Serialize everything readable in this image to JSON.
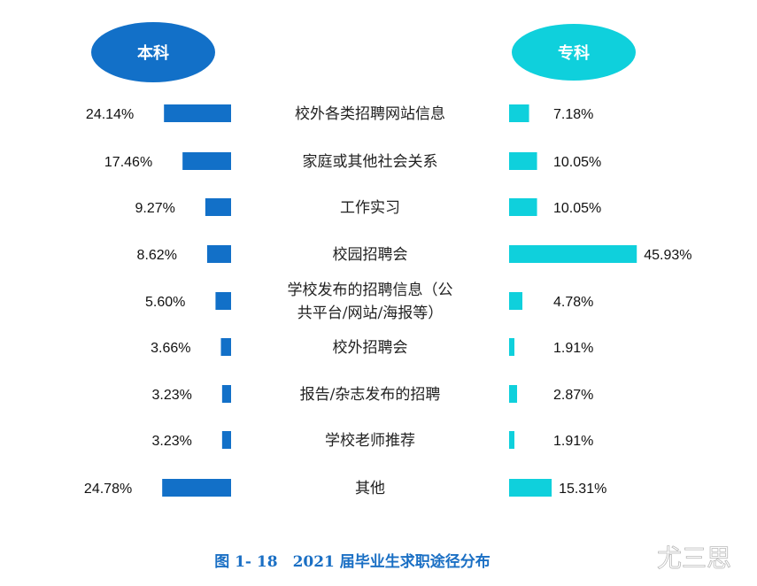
{
  "chart_data": {
    "type": "bar",
    "orientation": "horizontal-butterfly",
    "title": "图 1- 18　2021 届毕业生求职途径分布",
    "categories": [
      "校外各类招聘网站信息",
      "家庭或其他社会关系",
      "工作实习",
      "校园招聘会",
      "学校发布的招聘信息（公共平台/网站/海报等）",
      "校外招聘会",
      "报告/杂志发布的招聘",
      "学校老师推荐",
      "其他"
    ],
    "category_lines": [
      [
        "校外各类招聘网站信息"
      ],
      [
        "家庭或其他社会关系"
      ],
      [
        "工作实习"
      ],
      [
        "校园招聘会"
      ],
      [
        "学校发布的招聘信息（公",
        "共平台/网站/海报等）"
      ],
      [
        "校外招聘会"
      ],
      [
        "报告/杂志发布的招聘"
      ],
      [
        "学校老师推荐"
      ],
      [
        "其他"
      ]
    ],
    "series": [
      {
        "name": "本科",
        "color": "#1270c8",
        "values": [
          24.14,
          17.46,
          9.27,
          8.62,
          5.6,
          3.66,
          3.23,
          3.23,
          24.78
        ],
        "labels": [
          "24.14%",
          "17.46%",
          "9.27%",
          "8.62%",
          "5.60%",
          "3.66%",
          "3.23%",
          "3.23%",
          "24.78%"
        ]
      },
      {
        "name": "专科",
        "color": "#0fd0dc",
        "values": [
          7.18,
          10.05,
          10.05,
          45.93,
          4.78,
          1.91,
          2.87,
          1.91,
          15.31
        ],
        "labels": [
          "7.18%",
          "10.05%",
          "10.05%",
          "45.93%",
          "4.78%",
          "1.91%",
          "2.87%",
          "1.91%",
          "15.31%"
        ]
      }
    ],
    "unit": "%",
    "grid": false,
    "legend_placement": "top"
  },
  "watermark": "尤三思"
}
